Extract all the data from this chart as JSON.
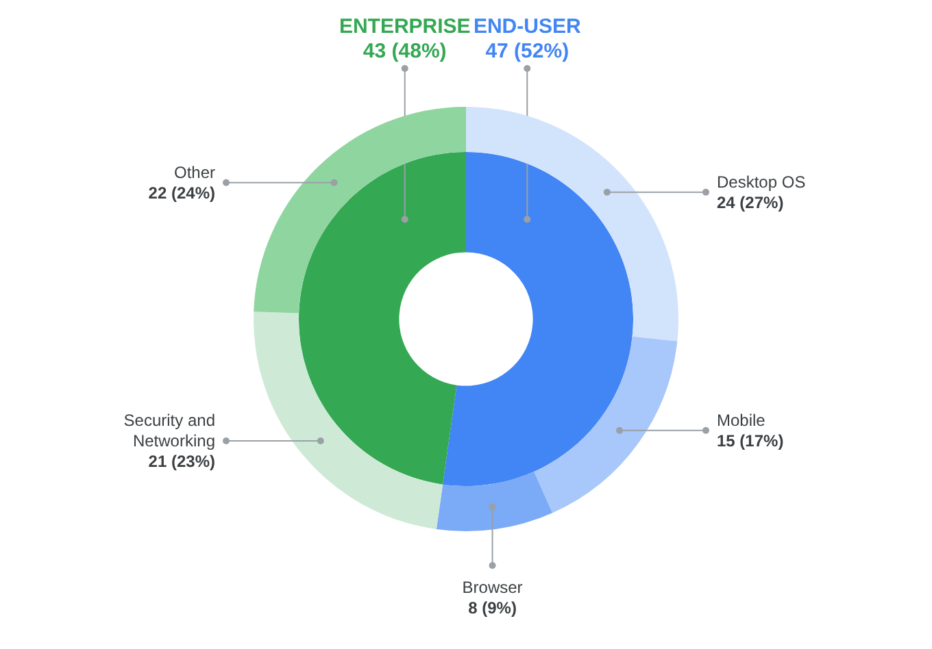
{
  "chart_data": [
    {
      "type": "donut",
      "categories": [
        "END-USER",
        "ENTERPRISE"
      ],
      "values": [
        47,
        43
      ],
      "colors": [
        "#4285f4",
        "#34a853"
      ],
      "value_labels": [
        "47 (52%)",
        "43 (48%)"
      ]
    },
    {
      "type": "donut",
      "categories": [
        "Desktop OS",
        "Mobile",
        "Browser",
        "Security and Networking",
        "Other"
      ],
      "values": [
        24,
        15,
        8,
        21,
        22
      ],
      "colors": [
        "#d2e3fc",
        "#a8c7fa",
        "#7baaf7",
        "#ceead6",
        "#8fd5a0"
      ],
      "value_labels": [
        "24 (27%)",
        "15 (17%)",
        "8 (9%)",
        "21 (23%)",
        "22 (24%)"
      ]
    }
  ]
}
